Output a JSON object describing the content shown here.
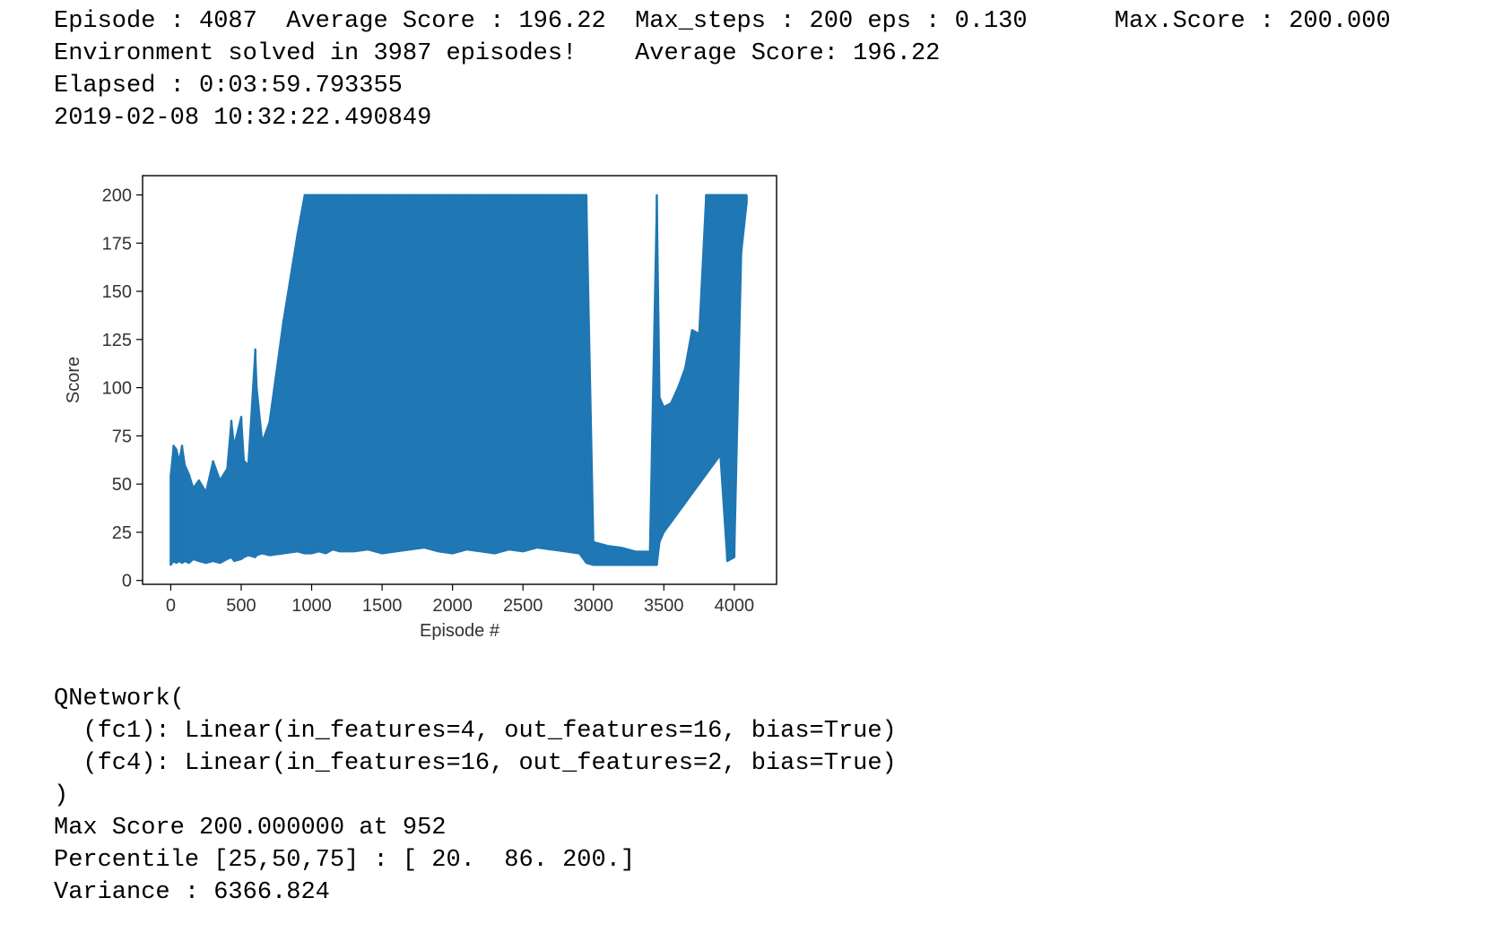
{
  "header": {
    "line0": "Episode : 4087  Average Score : 196.22  Max_steps : 200 eps : 0.130      Max.Score : 200.000",
    "line1": "Environment solved in 3987 episodes!    Average Score: 196.22",
    "line2": "Elapsed : 0:03:59.793355",
    "line3": "2019-02-08 10:32:22.490849"
  },
  "chart_data": {
    "type": "line",
    "title": "",
    "xlabel": "Episode #",
    "ylabel": "Score",
    "xlim": [
      -200,
      4300
    ],
    "ylim": [
      0,
      200
    ],
    "xticks": [
      0,
      500,
      1000,
      1500,
      2000,
      2500,
      3000,
      3500,
      4000
    ],
    "yticks": [
      0,
      25,
      50,
      75,
      100,
      125,
      150,
      175,
      200
    ],
    "grid": false,
    "color": "#1f77b4",
    "series": [
      {
        "x": [
          0,
          20,
          40,
          60,
          80,
          100,
          130,
          160,
          200,
          250,
          300,
          350,
          400,
          430,
          450,
          500,
          520,
          550,
          600,
          610,
          650,
          700,
          800,
          900,
          950,
          1000,
          1050,
          1100,
          1150,
          1200,
          1300,
          1400,
          1500,
          1600,
          1700,
          1800,
          1900,
          2000,
          2100,
          2200,
          2300,
          2400,
          2500,
          2600,
          2700,
          2800,
          2900,
          2950,
          3000,
          3100,
          3200,
          3300,
          3400,
          3450,
          3470,
          3500,
          3550,
          3600,
          3650,
          3700,
          3750,
          3800,
          3850,
          3900,
          3950,
          4000,
          4050,
          4087
        ],
        "max": [
          55,
          70,
          68,
          62,
          70,
          60,
          55,
          48,
          52,
          46,
          62,
          52,
          58,
          83,
          70,
          85,
          62,
          60,
          120,
          100,
          72,
          82,
          135,
          180,
          200,
          200,
          200,
          200,
          200,
          200,
          200,
          200,
          200,
          200,
          200,
          200,
          200,
          200,
          200,
          200,
          200,
          200,
          200,
          200,
          200,
          200,
          200,
          200,
          20,
          18,
          17,
          15,
          15,
          200,
          95,
          90,
          92,
          100,
          110,
          130,
          128,
          200,
          200,
          200,
          200,
          200,
          200,
          200
        ],
        "min": [
          8,
          10,
          9,
          10,
          9,
          10,
          9,
          11,
          10,
          9,
          10,
          9,
          11,
          12,
          10,
          11,
          12,
          13,
          12,
          13,
          14,
          13,
          14,
          15,
          14,
          14,
          15,
          14,
          16,
          15,
          15,
          16,
          14,
          15,
          16,
          17,
          15,
          14,
          16,
          15,
          14,
          16,
          15,
          17,
          16,
          15,
          14,
          9,
          8,
          8,
          8,
          8,
          8,
          8,
          20,
          25,
          30,
          35,
          40,
          45,
          50,
          55,
          60,
          65,
          10,
          12,
          170,
          195
        ]
      }
    ]
  },
  "model": {
    "line0": "QNetwork(",
    "line1": "  (fc1): Linear(in_features=4, out_features=16, bias=True)",
    "line2": "  (fc4): Linear(in_features=16, out_features=2, bias=True)",
    "line3": ")"
  },
  "stats": {
    "max_score": "Max Score 200.000000 at 952",
    "percentile": "Percentile [25,50,75] : [ 20.  86. 200.]",
    "variance": "Variance : 6366.824"
  }
}
